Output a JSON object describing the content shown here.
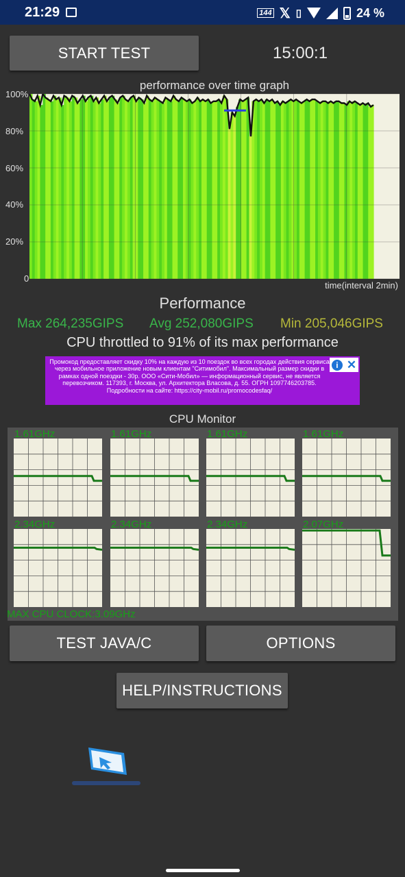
{
  "status_bar": {
    "time": "21:29",
    "network_badge": "144",
    "battery_percent": "24 %",
    "icons": [
      "image-icon",
      "hd-network-icon",
      "x-app-icon",
      "vibrate-icon",
      "wifi-icon",
      "signal-icon",
      "battery-icon"
    ]
  },
  "controls": {
    "start_label": "START TEST",
    "timer": "15:00:1",
    "test_java_label": "TEST JAVA/C",
    "options_label": "OPTIONS",
    "help_label": "HELP/INSTRUCTIONS"
  },
  "graph": {
    "title": "performance over time graph",
    "y_ticks": [
      "100%",
      "80%",
      "60%",
      "40%",
      "20%",
      "0"
    ],
    "time_label": "time(interval 2min)"
  },
  "chart_data": {
    "type": "area",
    "title": "performance over time graph",
    "xlabel": "time(interval 2min)",
    "ylabel": "",
    "ylim": [
      0,
      100
    ],
    "y_ticks": [
      0,
      20,
      40,
      60,
      80,
      100
    ],
    "x_ticks_count": 7,
    "grid": true,
    "series": [
      {
        "values": [
          100,
          97,
          96,
          99,
          94,
          100,
          98,
          97,
          96,
          99,
          97,
          98,
          94,
          99,
          98,
          96,
          99,
          98,
          95,
          97,
          99,
          96,
          98,
          99,
          96,
          98,
          95,
          97,
          99,
          96,
          98,
          99,
          97,
          95,
          98,
          99,
          97,
          96,
          98,
          99,
          96,
          98,
          97,
          95,
          99,
          97,
          96,
          98,
          97,
          96,
          95,
          98,
          97,
          96,
          99,
          97,
          96,
          98,
          97,
          96,
          97,
          95,
          96,
          98,
          96,
          97,
          96,
          97,
          95,
          96,
          96,
          97,
          95,
          99,
          97,
          81,
          90,
          88,
          93,
          97,
          96,
          97,
          98,
          77,
          96,
          97,
          96,
          97,
          95,
          97,
          96,
          97,
          95,
          96,
          94,
          96,
          95,
          96,
          97,
          96,
          97,
          96,
          95,
          96,
          97,
          96,
          97,
          97,
          96,
          95,
          96,
          96,
          95,
          96,
          95,
          96,
          96,
          95,
          95,
          94,
          96,
          95,
          96,
          95,
          94,
          95,
          94,
          95,
          93,
          94
        ]
      }
    ],
    "avg_line_value": 91
  },
  "performance": {
    "title": "Performance",
    "max": "Max 264,235GIPS",
    "avg": "Avg 252,080GIPS",
    "min": "Min 205,046GIPS",
    "throttle": "CPU throttled to 91% of its max performance"
  },
  "ad": {
    "text": "Промокод предоставляет скидку 10% на каждую из 10 поездок во всех городах действия сервиса через мобильное приложение новым клиентам \"Ситимобил\". Максимальный размер скидки в рамках одной поездки - 30р. ООО «Сити-Мобил» — информационный сервис, не является перевозчиком. 117393, г. Москва, ул. Архитектора Власова, д. 55. ОГРН 1097746203785. Подробности на сайте: https://city-mobil.ru/promocodesfaq/",
    "info": "i",
    "close": "✕"
  },
  "cpu_monitor": {
    "title": "CPU Monitor",
    "max_clock": "MAX CPU CLOCK:3.09GHz",
    "cores": [
      {
        "freq": "1.61GHz",
        "level": 0.52
      },
      {
        "freq": "1.61GHz",
        "level": 0.52
      },
      {
        "freq": "1.61GHz",
        "level": 0.52
      },
      {
        "freq": "1.61GHz",
        "level": 0.52
      },
      {
        "freq": "2.34GHz",
        "level": 0.76
      },
      {
        "freq": "2.34GHz",
        "level": 0.76
      },
      {
        "freq": "2.34GHz",
        "level": 0.76
      },
      {
        "freq": "2.07GHz",
        "level": 0.67
      }
    ]
  },
  "colors": {
    "status_bar": "#0e2a63",
    "background": "#303030",
    "button": "#5a5a5a",
    "max_stat": "#39b54a",
    "avg_stat": "#39b54a",
    "min_stat": "#b5b83a",
    "core_line": "#1a7a1a",
    "ad_background": "#9b18d8"
  }
}
